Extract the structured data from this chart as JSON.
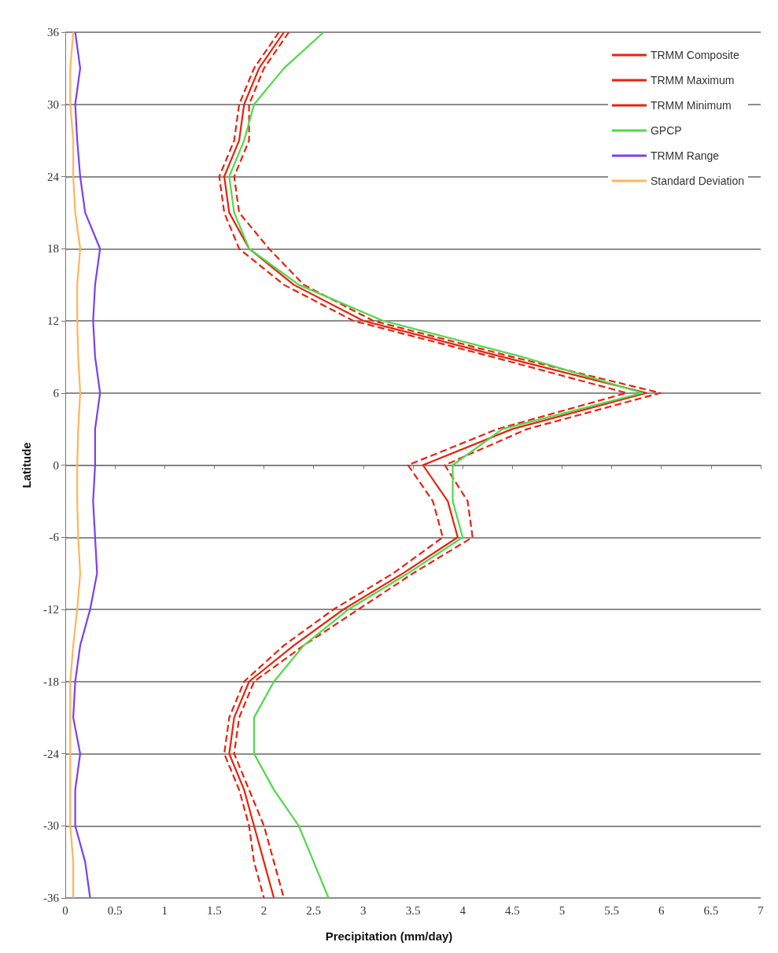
{
  "chart_data": {
    "type": "line",
    "orientation": "horizontal",
    "xlabel": "Precipitation (mm/day)",
    "ylabel": "Latitude",
    "x": [
      36,
      33,
      30,
      27,
      24,
      21,
      18,
      15,
      12,
      9,
      6,
      3,
      0,
      -3,
      -6,
      -9,
      -12,
      -15,
      -18,
      -21,
      -24,
      -27,
      -30,
      -33,
      -36
    ],
    "series": [
      {
        "name": "TRMM Composite",
        "color": "#e8220e",
        "line_style": "solid",
        "values": [
          2.2,
          1.95,
          1.8,
          1.75,
          1.6,
          1.65,
          1.85,
          2.3,
          3.0,
          4.4,
          5.85,
          4.5,
          3.6,
          3.85,
          3.95,
          3.4,
          2.8,
          2.3,
          1.85,
          1.7,
          1.65,
          1.8,
          1.9,
          2.0,
          2.1
        ]
      },
      {
        "name": "TRMM Maximum",
        "color": "#e8220e",
        "line_style": "dashed",
        "values": [
          2.25,
          2.0,
          1.85,
          1.85,
          1.7,
          1.75,
          2.05,
          2.4,
          3.1,
          4.5,
          5.99,
          4.65,
          3.82,
          4.05,
          4.1,
          3.5,
          2.95,
          2.4,
          1.9,
          1.75,
          1.7,
          1.85,
          2.0,
          2.1,
          2.2
        ]
      },
      {
        "name": "TRMM Minimum",
        "color": "#e8220e",
        "line_style": "dashed",
        "values": [
          2.15,
          1.9,
          1.75,
          1.7,
          1.55,
          1.6,
          1.75,
          2.2,
          2.9,
          4.3,
          5.65,
          4.35,
          3.45,
          3.7,
          3.8,
          3.3,
          2.7,
          2.2,
          1.8,
          1.65,
          1.6,
          1.75,
          1.85,
          1.9,
          2.0
        ]
      },
      {
        "name": "GPCP",
        "color": "#4fd94a",
        "line_style": "solid",
        "values": [
          2.6,
          2.2,
          1.9,
          1.8,
          1.65,
          1.7,
          1.85,
          2.35,
          3.2,
          4.6,
          5.81,
          4.4,
          3.9,
          3.9,
          4.0,
          3.45,
          2.85,
          2.4,
          2.1,
          1.9,
          1.9,
          2.1,
          2.35,
          2.5,
          2.65
        ]
      },
      {
        "name": "TRMM Range",
        "color": "#7b3ff2",
        "line_style": "solid",
        "values": [
          0.1,
          0.15,
          0.1,
          0.12,
          0.15,
          0.2,
          0.35,
          0.3,
          0.28,
          0.3,
          0.35,
          0.3,
          0.3,
          0.28,
          0.3,
          0.32,
          0.25,
          0.15,
          0.1,
          0.08,
          0.15,
          0.1,
          0.1,
          0.2,
          0.25
        ]
      },
      {
        "name": "Standard Deviation",
        "color": "#ffb45c",
        "line_style": "solid",
        "values": [
          0.08,
          0.05,
          0.05,
          0.08,
          0.08,
          0.1,
          0.15,
          0.12,
          0.12,
          0.13,
          0.15,
          0.13,
          0.12,
          0.12,
          0.13,
          0.15,
          0.12,
          0.08,
          0.05,
          0.05,
          0.05,
          0.05,
          0.05,
          0.08,
          0.08
        ]
      }
    ],
    "xlim": [
      0,
      7
    ],
    "xticks": [
      0,
      0.5,
      1,
      1.5,
      2,
      2.5,
      3,
      3.5,
      4,
      4.5,
      5,
      5.5,
      6,
      6.5,
      7
    ],
    "ylim": [
      -36,
      36
    ],
    "yticks": [
      -36,
      -30,
      -24,
      -18,
      -12,
      -6,
      0,
      6,
      12,
      18,
      24,
      30,
      36
    ],
    "grid": "y",
    "legend": "top right",
    "marker": "none"
  }
}
